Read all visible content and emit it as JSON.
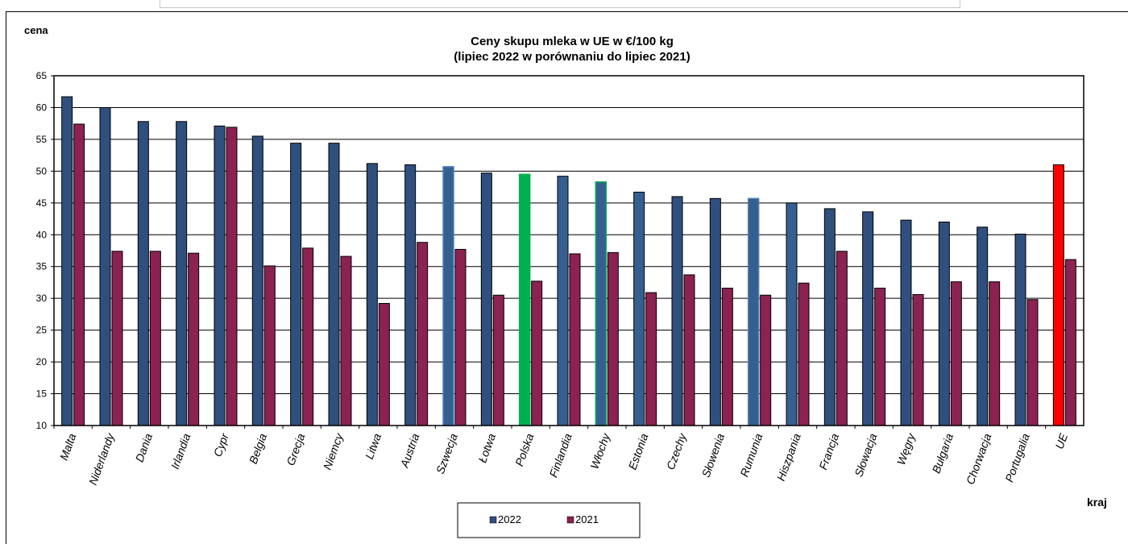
{
  "chart_data": {
    "type": "bar",
    "title_line1": "Ceny skupu mleka  w UE  w €/100 kg",
    "title_line2": "(lipiec  2022  w porównaniu do lipiec  2021)",
    "ylabel": "cena",
    "xlabel": "kraj",
    "ylim": [
      10,
      65
    ],
    "yticks": [
      "10",
      "15",
      "20",
      "25",
      "30",
      "35",
      "40",
      "45",
      "50",
      "55",
      "60",
      "65"
    ],
    "grid": true,
    "legend_position": "bottom-center",
    "categories": [
      "Malta",
      "Niderlandy",
      "Dania",
      "Irlandia",
      "Cypr",
      "Belgia",
      "Grecja",
      "Niemcy",
      "Litwa",
      "Austria",
      "Szwecja",
      "Łotwa",
      "Polska",
      "Finlandia",
      "Włochy",
      "Estonia",
      "Czechy",
      "Słowenia",
      "Rumunia",
      "Hiszpania",
      "Francja",
      "Słowacja",
      "Węgry",
      "Bułgaria",
      "Chorwacja",
      "Portugalia",
      "UE"
    ],
    "series": [
      {
        "name": "2022",
        "color": "#2f4f7f",
        "values": [
          61.7,
          60.0,
          57.8,
          57.8,
          57.1,
          55.5,
          54.4,
          54.4,
          51.2,
          51.0,
          50.7,
          49.7,
          49.5,
          49.2,
          48.3,
          46.7,
          46.0,
          45.7,
          45.7,
          45.0,
          44.1,
          43.6,
          42.3,
          42.0,
          41.2,
          40.1,
          51.0
        ]
      },
      {
        "name": "2021",
        "color": "#8b2252",
        "values": [
          57.4,
          37.4,
          37.4,
          37.1,
          56.9,
          35.1,
          37.9,
          36.6,
          29.2,
          38.8,
          37.7,
          30.5,
          32.7,
          37.0,
          37.2,
          30.9,
          33.7,
          31.6,
          30.5,
          32.4,
          37.4,
          31.6,
          30.6,
          32.6,
          32.6,
          29.8,
          36.1
        ]
      }
    ],
    "highlight_colors": {
      "Polska": "#00b050",
      "UE": "#ff0000",
      "border_light_blue": "#4f81bd",
      "border_green": "#00b050"
    },
    "highlighted_2022_fill": {
      "Szwecja": "#365f91",
      "Polska": "#00b050",
      "Finlandia": "#365f91",
      "Włochy": "#365f91",
      "Estonia": "#365f91",
      "Rumunia": "#365f91",
      "Hiszpania": "#365f91",
      "UE": "#ff0000"
    },
    "highlighted_2022_border": {
      "Szwecja": "#4f81bd",
      "Polska": "#00b050",
      "Włochy": "#00b050",
      "Rumunia": "#4f81bd"
    }
  }
}
